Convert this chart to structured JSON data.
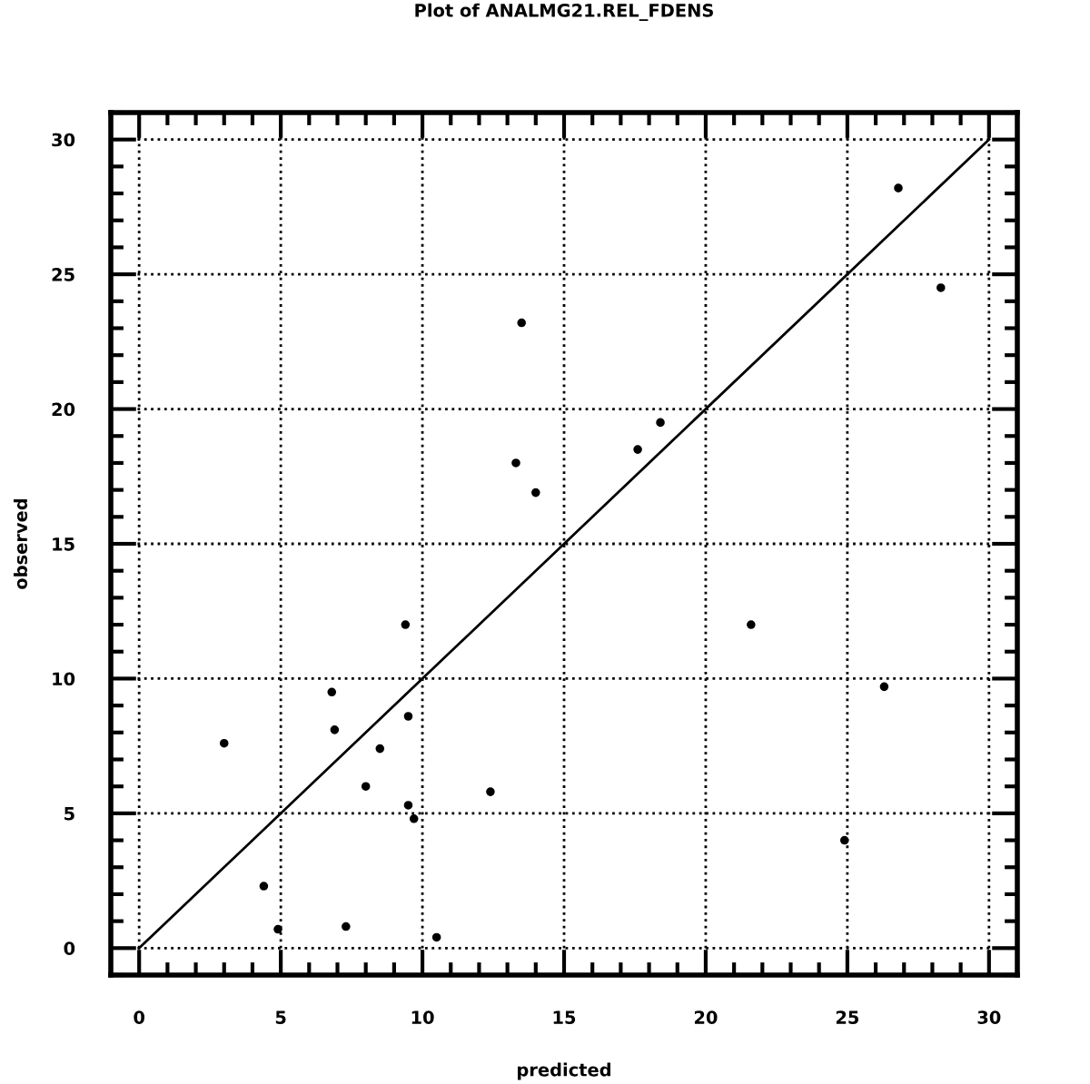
{
  "chart_data": {
    "type": "scatter",
    "title": "Plot of ANALMG21.REL_FDENS",
    "xlabel": "predicted",
    "ylabel": "observed",
    "xlim": [
      -1,
      31
    ],
    "ylim": [
      -1,
      31
    ],
    "xticks": [
      0,
      5,
      10,
      15,
      20,
      25,
      30
    ],
    "yticks": [
      0,
      5,
      10,
      15,
      20,
      25,
      30
    ],
    "grid": true,
    "marker": "circle",
    "series": [
      {
        "color": "#000000",
        "x": [
          3.0,
          4.4,
          4.9,
          6.8,
          6.9,
          7.3,
          8.0,
          8.5,
          9.4,
          9.5,
          9.5,
          9.7,
          10.5,
          12.4,
          13.3,
          13.5,
          14.0,
          17.6,
          18.4,
          21.6,
          24.9,
          26.3,
          26.8,
          28.3
        ],
        "values": [
          7.6,
          2.3,
          0.7,
          9.5,
          8.1,
          0.8,
          6.0,
          7.4,
          12.0,
          8.6,
          5.3,
          4.8,
          0.4,
          5.8,
          18.0,
          23.2,
          16.9,
          18.5,
          19.5,
          12.0,
          4.0,
          9.7,
          28.2,
          24.5
        ]
      },
      {
        "type": "line",
        "color": "#000000",
        "x": [
          0,
          30
        ],
        "values": [
          0,
          30
        ],
        "marker": "none",
        "line_style": "solid"
      }
    ]
  }
}
